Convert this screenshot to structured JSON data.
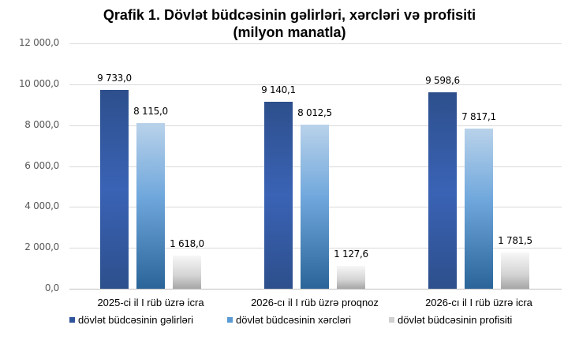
{
  "chart_data": {
    "type": "bar",
    "title": "Qrafik 1. Dövlət büdcəsinin gəlirləri, xərcləri və profisiti",
    "subtitle": "(milyon manatla)",
    "xlabel": "",
    "ylabel": "",
    "ylim": [
      0,
      12000
    ],
    "grid": true,
    "legend_position": "bottom",
    "categories": [
      "2025-ci il I rüb üzrə icra",
      "2026-cı il I rüb üzrə proqnoz",
      "2026-cı il I rüb üzrə icra"
    ],
    "series": [
      {
        "name": "dövlət büdcəsinin gəlirləri",
        "values": [
          9733.0,
          9140.1,
          9598.6
        ],
        "color": "#2f549c"
      },
      {
        "name": "dövlət büdcəsinin xərcləri",
        "values": [
          8115.0,
          8012.5,
          7817.1
        ],
        "color": "#5b9bd5"
      },
      {
        "name": "dövlət büdcəsinin profisiti",
        "values": [
          1618.0,
          1127.6,
          1781.5
        ],
        "color": "#c8c8c8"
      }
    ],
    "y_ticks": [
      "0,0",
      "2 000,0",
      "4 000,0",
      "6 000,0",
      "8 000,0",
      "10 000,0",
      "12 000,0"
    ],
    "data_labels": [
      [
        "9 733,0",
        "8 115,0",
        "1 618,0"
      ],
      [
        "9 140,1",
        "8 012,5",
        "1 127,6"
      ],
      [
        "9 598,6",
        "7 817,1",
        "1 781,5"
      ]
    ]
  }
}
